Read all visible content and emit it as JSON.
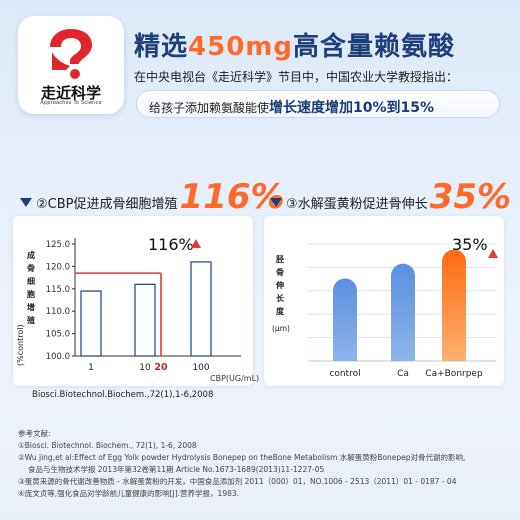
{
  "logo": {
    "text": "走近科学",
    "subtitle": "Approaches To Science",
    "colors": {
      "mark": "#e0262c"
    }
  },
  "header": {
    "title_pre": "精选",
    "title_highlight": "450mg",
    "title_post": "高含量赖氨酸",
    "subline": "在中央电视台《走近科学》节目中，中国农业大学教授指出：",
    "pill_text": "给孩子添加赖氨酸能使",
    "pill_emphasis": "增长速度增加10%到15%"
  },
  "sections": {
    "left_title": "②CBP促进成骨细胞增殖",
    "left_big": "116%",
    "right_title": "③水解蛋黄粉促进骨伸长",
    "right_big": "35%"
  },
  "chart_data": [
    {
      "type": "bar",
      "ylabel": "成骨细胞增殖(%control)",
      "xlabel": "CBP(UG/mL)",
      "categories": [
        "1",
        "10",
        "100"
      ],
      "values": [
        114.5,
        116,
        121
      ],
      "ylim": [
        100,
        125
      ],
      "yticks": [
        "100.0",
        "105.0",
        "110.0",
        "115.0",
        "120.0",
        "125.0"
      ],
      "annotation": "116%",
      "highlight_x_label": "20",
      "highlight_level": 118.5,
      "grid": false,
      "citation": "Biosci.Biotechnol.Biochem.,72(1),1-6,2008",
      "colors": {
        "bar_stroke": "#1f3f7a",
        "highlight": "#e43a3a"
      }
    },
    {
      "type": "bar",
      "ylabel": "胫骨伸长度(μm)",
      "categories": [
        "control",
        "Ca",
        "Ca+Bonrpep"
      ],
      "values": [
        1.0,
        1.18,
        1.35
      ],
      "annotation": "35%",
      "grid": true,
      "colors": {
        "bar": "#4a7fd4",
        "highlight_bar": "#ff7a1a"
      }
    }
  ],
  "references": {
    "title": "参考文献:",
    "lines": [
      "①Biosci. Biotechnol. Biochem., 72(1), 1-6, 2008",
      "②Wu jing,et al:Effect of Egg Yolk powder Hydrolysis Bonepep on theBone Metabolism 水解蛋黄粉Bonepep对骨代谢的影响,",
      "食品与生物技术学报 2013年第32卷第11期 Article No.1673-1689(2013)11-1227-05",
      "③蛋黄来源的骨代谢改善物质 - 水解蛋黄粉的开发，中国食品添加剂 2011（000）01，NO.1006 - 2513（2011）01 - 0187 - 04",
      "④庞文贞等,强化食品对学龄前儿童健康的影响[J].营养学报，1983."
    ]
  }
}
